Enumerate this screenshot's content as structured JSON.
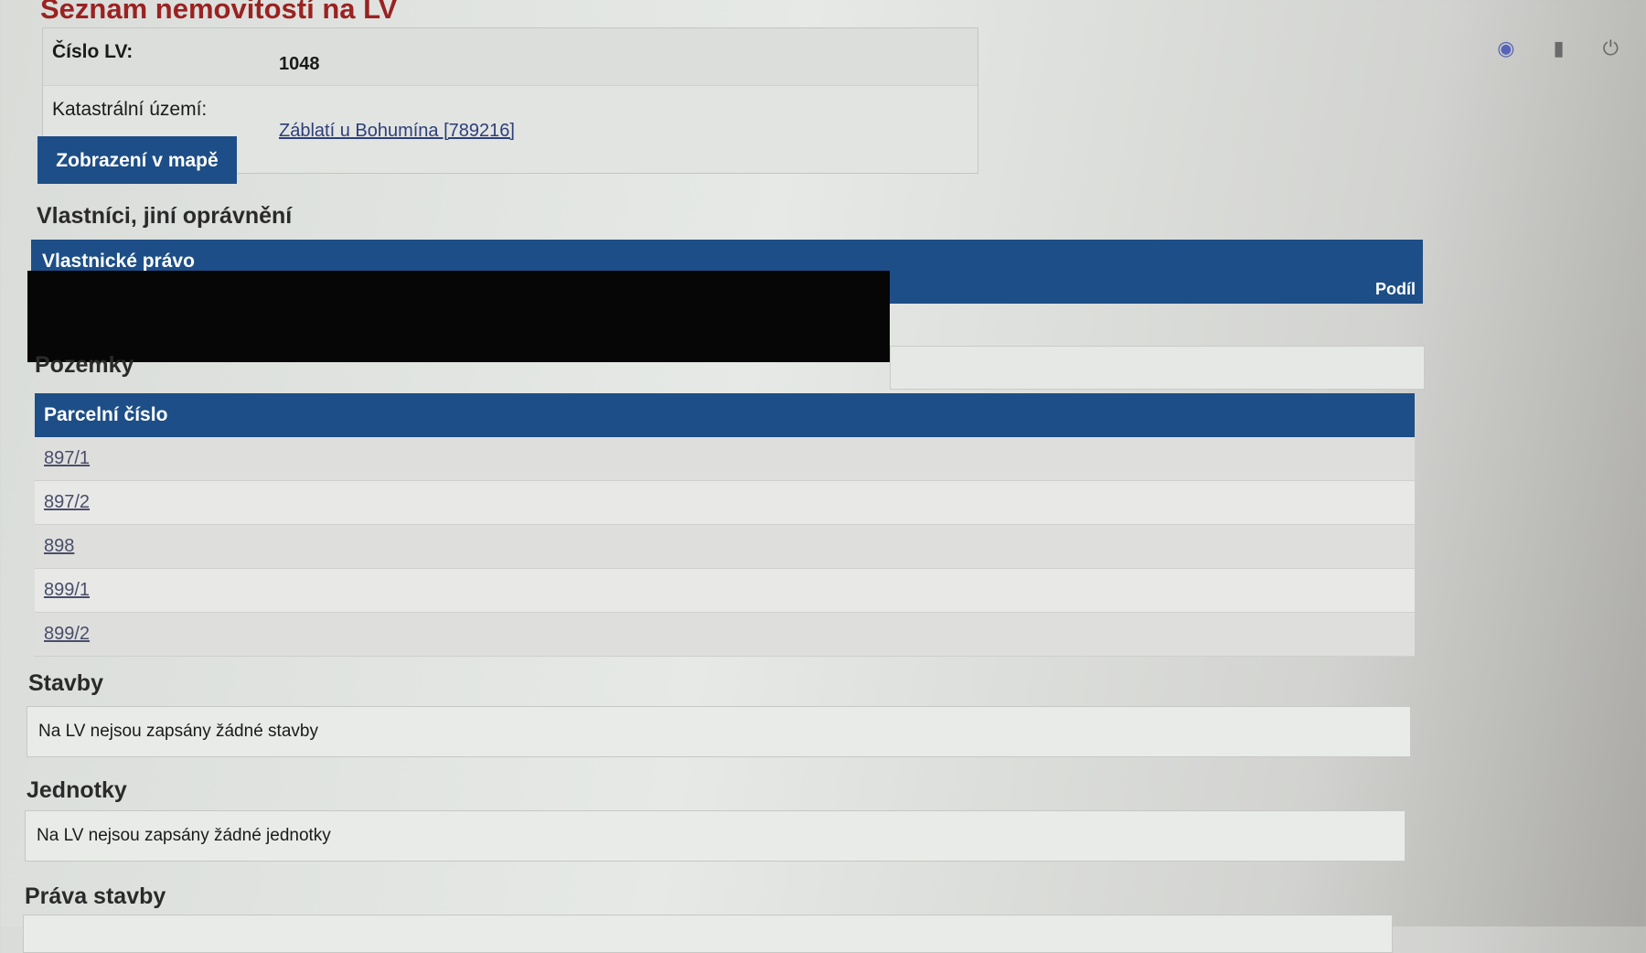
{
  "page_title": "Seznam nemovitostí na LV",
  "info": {
    "lv_label": "Číslo LV:",
    "lv_value": "1048",
    "ku_label": "Katastrální území:",
    "ku_value": "Záblatí u Bohumína [789216]"
  },
  "map_button": "Zobrazení v mapě",
  "owners": {
    "heading": "Vlastníci, jiní oprávnění",
    "section": "Vlastnické právo",
    "share_col": "Podíl"
  },
  "parcels": {
    "heading": "Pozemky",
    "column": "Parcelní číslo",
    "rows": [
      "897/1",
      "897/2",
      "898",
      "899/1",
      "899/2"
    ]
  },
  "buildings": {
    "heading": "Stavby",
    "empty": "Na LV nejsou zapsány žádné stavby"
  },
  "units": {
    "heading": "Jednotky",
    "empty": "Na LV nejsou zapsány žádné jednotky"
  },
  "building_rights": {
    "heading": "Práva stavby"
  },
  "colors": {
    "accent": "#1d4e87",
    "title": "#9a2222"
  }
}
